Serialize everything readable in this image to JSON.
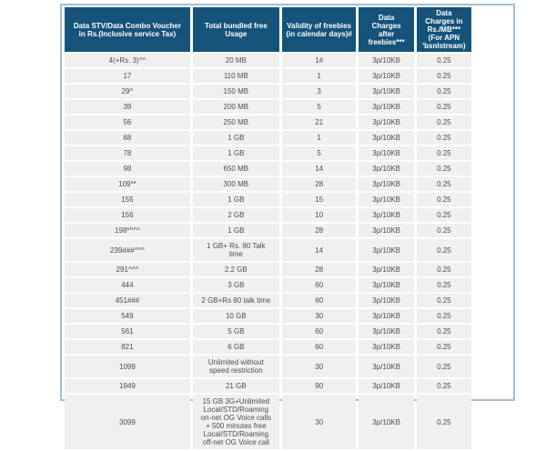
{
  "colors": {
    "page_background": "#ffffff",
    "header_background": "#15537a",
    "header_text": "#ffffff",
    "cell_background": "#f0f0ef",
    "cell_text": "#4d4d4d",
    "table_border": "#a3bdd3"
  },
  "table": {
    "columns": [
      "Data STV/Data Combo Voucher\nin Rs.(Inclusive service Tax)",
      "Total bundled free\nUsage",
      "Validity of freebies\n(in calendar days)#",
      "Data\nCharges\nafter\nfreebies***",
      "Data\nCharges in\nRs./MB***\n(For APN\n'bsnlstream)"
    ],
    "rows": [
      {
        "voucher": "4(+Rs. 3)^^",
        "usage": "20 MB",
        "validity": "1#",
        "charges_after": "3p/10KB",
        "charges_mb": "0.25"
      },
      {
        "voucher": "17",
        "usage": "110 MB",
        "validity": "1",
        "charges_after": "3p/10KB",
        "charges_mb": "0.25"
      },
      {
        "voucher": "29^",
        "usage": "150 MB",
        "validity": "3",
        "charges_after": "3p/10KB",
        "charges_mb": "0.25"
      },
      {
        "voucher": "39",
        "usage": "200 MB",
        "validity": "5",
        "charges_after": "3p/10KB",
        "charges_mb": "0.25"
      },
      {
        "voucher": "56",
        "usage": "250 MB",
        "validity": "21",
        "charges_after": "3p/10KB",
        "charges_mb": "0.25"
      },
      {
        "voucher": "68",
        "usage": "1 GB",
        "validity": "1",
        "charges_after": "3p/10KB",
        "charges_mb": "0.25"
      },
      {
        "voucher": "78",
        "usage": "1 GB",
        "validity": "5",
        "charges_after": "3p/10KB",
        "charges_mb": "0.25"
      },
      {
        "voucher": "98",
        "usage": "650 MB",
        "validity": "14",
        "charges_after": "3p/10KB",
        "charges_mb": "0.25"
      },
      {
        "voucher": "109**",
        "usage": "300 MB",
        "validity": "28",
        "charges_after": "3p/10KB",
        "charges_mb": "0.25"
      },
      {
        "voucher": "155",
        "usage": "1 GB",
        "validity": "15",
        "charges_after": "3p/10KB",
        "charges_mb": "0.25"
      },
      {
        "voucher": "156",
        "usage": "2 GB",
        "validity": "10",
        "charges_after": "3p/10KB",
        "charges_mb": "0.25"
      },
      {
        "voucher": "198*^^^",
        "usage": "1 GB",
        "validity": "28",
        "charges_after": "3p/10KB",
        "charges_mb": "0.25"
      },
      {
        "voucher": "239###^^^",
        "usage": "1 GB+ Rs. 80 Talk\ntime",
        "validity": "14",
        "charges_after": "3p/10KB",
        "charges_mb": "0.25"
      },
      {
        "voucher": "291^^^",
        "usage": "2.2 GB",
        "validity": "28",
        "charges_after": "3p/10KB",
        "charges_mb": "0.25"
      },
      {
        "voucher": "444",
        "usage": "3 GB",
        "validity": "60",
        "charges_after": "3p/10KB",
        "charges_mb": "0.25"
      },
      {
        "voucher": "451###",
        "usage": "2 GB+Rs 80 talk time",
        "validity": "60",
        "charges_after": "3p/10KB",
        "charges_mb": "0.25"
      },
      {
        "voucher": "549",
        "usage": "10 GB",
        "validity": "30",
        "charges_after": "3p/10KB",
        "charges_mb": "0.25"
      },
      {
        "voucher": "561",
        "usage": "5 GB",
        "validity": "60",
        "charges_after": "3p/10KB",
        "charges_mb": "0.25"
      },
      {
        "voucher": "821",
        "usage": "6 GB",
        "validity": "60",
        "charges_after": "3p/10KB",
        "charges_mb": "0.25"
      },
      {
        "voucher": "1099",
        "usage": "Unlimited without\nspeed restriction",
        "validity": "30",
        "charges_after": "3p/10KB",
        "charges_mb": "0.25"
      },
      {
        "voucher": "1949",
        "usage": "21 GB",
        "validity": "90",
        "charges_after": "3p/10KB",
        "charges_mb": "0.25"
      },
      {
        "voucher": "3099",
        "usage": "15 GB 3G+Unlimited\nLocal/STD/Roaming\non-net OG Voice calls\n+ 500 minutes free\nLocal/STD/Roaming\noff-net OG Voice call",
        "validity": "30",
        "charges_after": "3p/10KB",
        "charges_mb": "0.25"
      }
    ]
  }
}
